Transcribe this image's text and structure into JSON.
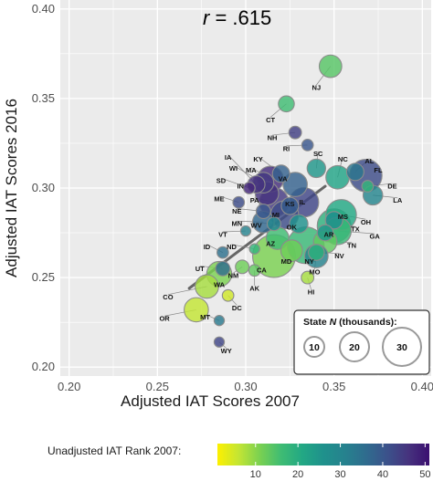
{
  "chart_data": {
    "type": "scatter",
    "title": "",
    "annotation": "r = .615",
    "annotation_r": "r",
    "annotation_value": " = .615",
    "xlabel": "Adjusted IAT Scores 2007",
    "ylabel": "Adjusted IAT Scores 2016",
    "xlim": [
      0.195,
      0.405
    ],
    "ylim": [
      0.195,
      0.405
    ],
    "x_ticks": [
      "0.20",
      "0.25",
      "0.30",
      "0.35",
      "0.40"
    ],
    "y_ticks": [
      "0.20",
      "0.25",
      "0.30",
      "0.35",
      "0.40"
    ],
    "x_tick_values": [
      0.2,
      0.25,
      0.3,
      0.35,
      0.4
    ],
    "y_tick_values": [
      0.2,
      0.25,
      0.3,
      0.35,
      0.4
    ],
    "grid": true,
    "background": "#ebebeb",
    "regression_line": {
      "x": [
        0.268,
        0.345
      ],
      "y": [
        0.244,
        0.301
      ]
    },
    "points": [
      {
        "state": "NJ",
        "x": 0.348,
        "y": 0.368,
        "n": 20,
        "rank": 14,
        "lx": 0.34,
        "ly": 0.356
      },
      {
        "state": "CT",
        "x": 0.323,
        "y": 0.347,
        "n": 8,
        "rank": 16,
        "lx": 0.314,
        "ly": 0.338
      },
      {
        "state": "NH",
        "x": 0.328,
        "y": 0.331,
        "n": 4,
        "rank": 44,
        "lx": 0.315,
        "ly": 0.328
      },
      {
        "state": "RI",
        "x": 0.335,
        "y": 0.324,
        "n": 3,
        "rank": 40,
        "lx": 0.323,
        "ly": 0.322
      },
      {
        "state": "KY",
        "x": 0.32,
        "y": 0.308,
        "n": 10,
        "rank": 38,
        "lx": 0.307,
        "ly": 0.316
      },
      {
        "state": "SC",
        "x": 0.34,
        "y": 0.311,
        "n": 12,
        "rank": 25,
        "lx": 0.341,
        "ly": 0.319
      },
      {
        "state": "NC",
        "x": 0.352,
        "y": 0.306,
        "n": 22,
        "rank": 22,
        "lx": 0.355,
        "ly": 0.316
      },
      {
        "state": "AL",
        "x": 0.362,
        "y": 0.309,
        "n": 10,
        "rank": 34,
        "lx": 0.37,
        "ly": 0.315
      },
      {
        "state": "FL",
        "x": 0.368,
        "y": 0.307,
        "n": 48,
        "rank": 42,
        "lx": 0.375,
        "ly": 0.31
      },
      {
        "state": "DE",
        "x": 0.369,
        "y": 0.301,
        "n": 3,
        "rank": 18,
        "lx": 0.383,
        "ly": 0.301
      },
      {
        "state": "LA",
        "x": 0.372,
        "y": 0.296,
        "n": 14,
        "rank": 30,
        "lx": 0.386,
        "ly": 0.293
      },
      {
        "state": "IA",
        "x": 0.306,
        "y": 0.302,
        "n": 10,
        "rank": 46,
        "lx": 0.29,
        "ly": 0.317
      },
      {
        "state": "WI",
        "x": 0.31,
        "y": 0.303,
        "n": 16,
        "rank": 45,
        "lx": 0.293,
        "ly": 0.311
      },
      {
        "state": "MA",
        "x": 0.314,
        "y": 0.305,
        "n": 28,
        "rank": 47,
        "lx": 0.303,
        "ly": 0.31
      },
      {
        "state": "SD",
        "x": 0.302,
        "y": 0.3,
        "n": 3,
        "rank": 48,
        "lx": 0.286,
        "ly": 0.304
      },
      {
        "state": "IN",
        "x": 0.312,
        "y": 0.297,
        "n": 22,
        "rank": 46,
        "lx": 0.297,
        "ly": 0.301
      },
      {
        "state": "VA",
        "x": 0.328,
        "y": 0.302,
        "n": 24,
        "rank": 38,
        "lx": 0.321,
        "ly": 0.305
      },
      {
        "state": "PA",
        "x": 0.316,
        "y": 0.292,
        "n": 38,
        "rank": 45,
        "lx": 0.305,
        "ly": 0.293
      },
      {
        "state": "KS",
        "x": 0.325,
        "y": 0.29,
        "n": 10,
        "rank": 39,
        "lx": 0.325,
        "ly": 0.291
      },
      {
        "state": "IL",
        "x": 0.333,
        "y": 0.292,
        "n": 38,
        "rank": 43,
        "lx": 0.332,
        "ly": 0.292
      },
      {
        "state": "ME",
        "x": 0.296,
        "y": 0.292,
        "n": 3,
        "rank": 42,
        "lx": 0.285,
        "ly": 0.294
      },
      {
        "state": "NE",
        "x": 0.31,
        "y": 0.287,
        "n": 6,
        "rank": 40,
        "lx": 0.295,
        "ly": 0.287
      },
      {
        "state": "MI",
        "x": 0.322,
        "y": 0.285,
        "n": 34,
        "rank": 42,
        "lx": 0.317,
        "ly": 0.285
      },
      {
        "state": "MN",
        "x": 0.31,
        "y": 0.281,
        "n": 18,
        "rank": 37,
        "lx": 0.295,
        "ly": 0.28
      },
      {
        "state": "WV",
        "x": 0.316,
        "y": 0.28,
        "n": 5,
        "rank": 29,
        "lx": 0.306,
        "ly": 0.279
      },
      {
        "state": "OK",
        "x": 0.33,
        "y": 0.28,
        "n": 12,
        "rank": 26,
        "lx": 0.326,
        "ly": 0.278
      },
      {
        "state": "MS",
        "x": 0.35,
        "y": 0.282,
        "n": 10,
        "rank": 27,
        "lx": 0.355,
        "ly": 0.284
      },
      {
        "state": "OH",
        "x": 0.354,
        "y": 0.285,
        "n": 42,
        "rank": 21,
        "lx": 0.368,
        "ly": 0.281
      },
      {
        "state": "TX",
        "x": 0.35,
        "y": 0.279,
        "n": 52,
        "rank": 19,
        "lx": 0.362,
        "ly": 0.277
      },
      {
        "state": "GA",
        "x": 0.352,
        "y": 0.276,
        "n": 32,
        "rank": 17,
        "lx": 0.373,
        "ly": 0.273
      },
      {
        "state": "AR",
        "x": 0.345,
        "y": 0.275,
        "n": 8,
        "rank": 25,
        "lx": 0.347,
        "ly": 0.274
      },
      {
        "state": "VT",
        "x": 0.3,
        "y": 0.276,
        "n": 2,
        "rank": 31,
        "lx": 0.287,
        "ly": 0.274
      },
      {
        "state": "AZ",
        "x": 0.318,
        "y": 0.272,
        "n": 20,
        "rank": 16,
        "lx": 0.314,
        "ly": 0.269
      },
      {
        "state": "TN",
        "x": 0.345,
        "y": 0.27,
        "n": 22,
        "rank": 13,
        "lx": 0.36,
        "ly": 0.268
      },
      {
        "state": "ND",
        "x": 0.305,
        "y": 0.266,
        "n": 2,
        "rank": 18,
        "lx": 0.292,
        "ly": 0.267
      },
      {
        "state": "NV",
        "x": 0.34,
        "y": 0.264,
        "n": 8,
        "rank": 19,
        "lx": 0.353,
        "ly": 0.262
      },
      {
        "state": "ID",
        "x": 0.287,
        "y": 0.264,
        "n": 3,
        "rank": 35,
        "lx": 0.278,
        "ly": 0.267
      },
      {
        "state": "MD",
        "x": 0.326,
        "y": 0.265,
        "n": 18,
        "rank": 12,
        "lx": 0.323,
        "ly": 0.259
      },
      {
        "state": "NY",
        "x": 0.334,
        "y": 0.268,
        "n": 64,
        "rank": 17,
        "lx": 0.336,
        "ly": 0.259
      },
      {
        "state": "CA",
        "x": 0.316,
        "y": 0.262,
        "n": 90,
        "rank": 11,
        "lx": 0.309,
        "ly": 0.254
      },
      {
        "state": "MO",
        "x": 0.34,
        "y": 0.262,
        "n": 22,
        "rank": 31,
        "lx": 0.339,
        "ly": 0.253
      },
      {
        "state": "UT",
        "x": 0.287,
        "y": 0.255,
        "n": 6,
        "rank": 36,
        "lx": 0.274,
        "ly": 0.255
      },
      {
        "state": "WA",
        "x": 0.285,
        "y": 0.252,
        "n": 26,
        "rank": 11,
        "lx": 0.285,
        "ly": 0.246
      },
      {
        "state": "NM",
        "x": 0.298,
        "y": 0.256,
        "n": 5,
        "rank": 12,
        "lx": 0.293,
        "ly": 0.251
      },
      {
        "state": "AK",
        "x": 0.305,
        "y": 0.254,
        "n": 3,
        "rank": 13,
        "lx": 0.305,
        "ly": 0.244
      },
      {
        "state": "HI",
        "x": 0.335,
        "y": 0.25,
        "n": 4,
        "rank": 8,
        "lx": 0.337,
        "ly": 0.242
      },
      {
        "state": "CO",
        "x": 0.278,
        "y": 0.245,
        "n": 22,
        "rank": 8,
        "lx": 0.256,
        "ly": 0.239
      },
      {
        "state": "OR",
        "x": 0.272,
        "y": 0.232,
        "n": 24,
        "rank": 6,
        "lx": 0.254,
        "ly": 0.227
      },
      {
        "state": "DC",
        "x": 0.29,
        "y": 0.24,
        "n": 3,
        "rank": 5,
        "lx": 0.295,
        "ly": 0.233
      },
      {
        "state": "MT",
        "x": 0.285,
        "y": 0.226,
        "n": 2,
        "rank": 33,
        "lx": 0.277,
        "ly": 0.228
      },
      {
        "state": "WY",
        "x": 0.285,
        "y": 0.214,
        "n": 2,
        "rank": 43,
        "lx": 0.289,
        "ly": 0.209
      }
    ],
    "size_legend": {
      "title_prefix": "State ",
      "title_n": "N",
      "title_suffix": " (thousands):",
      "values": [
        "10",
        "20",
        "30"
      ]
    },
    "colorbar": {
      "label": "Unadjusted IAT Rank 2007:",
      "min": 1,
      "max": 51,
      "ticks": [
        "10",
        "20",
        "30",
        "40",
        "50"
      ],
      "tick_values": [
        10,
        20,
        30,
        40,
        50
      ],
      "colors": [
        "#fdf000",
        "#c3e534",
        "#7ad151",
        "#3fbc73",
        "#22a884",
        "#1f918c",
        "#26828e",
        "#2f6c8e",
        "#3b528b",
        "#46337e",
        "#3b0f70"
      ]
    }
  }
}
